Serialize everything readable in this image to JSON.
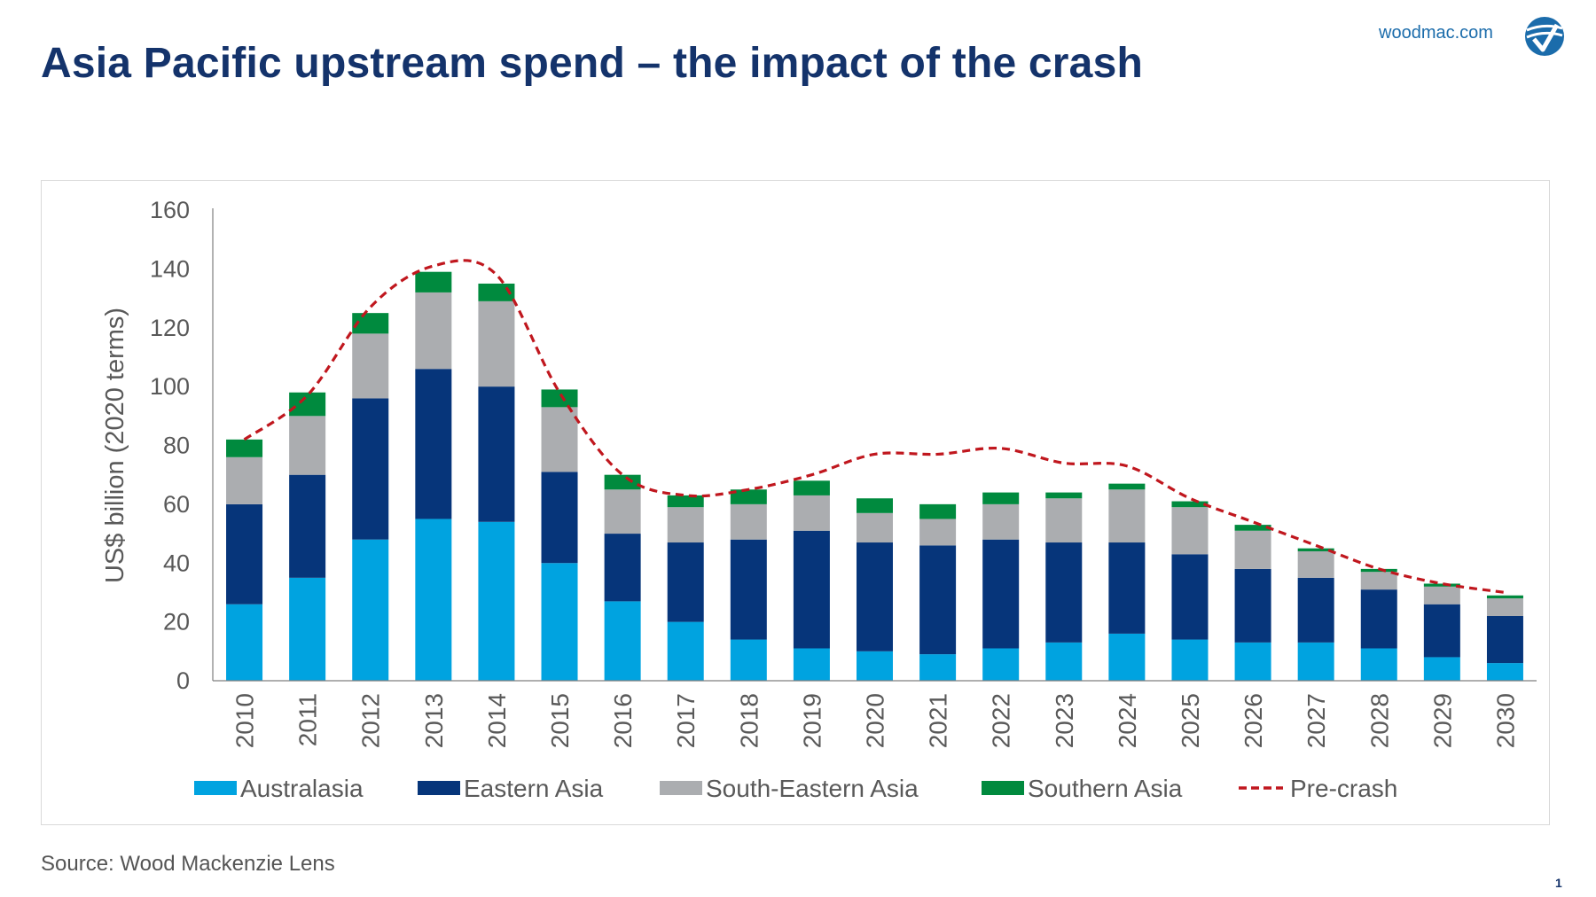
{
  "header": {
    "title": "Asia Pacific upstream spend – the impact of the crash",
    "site": "woodmac.com"
  },
  "footer": {
    "source": "Source: Wood Mackenzie Lens",
    "page_number": "1"
  },
  "chart_data": {
    "type": "bar",
    "stacked": true,
    "title": "",
    "xlabel": "",
    "ylabel": "US$ billion (2020 terms)",
    "ylim": [
      0,
      160
    ],
    "yticks": [
      0,
      20,
      40,
      60,
      80,
      100,
      120,
      140,
      160
    ],
    "grid": false,
    "legend_position": "bottom",
    "categories": [
      "2010",
      "2011",
      "2012",
      "2013",
      "2014",
      "2015",
      "2016",
      "2017",
      "2018",
      "2019",
      "2020",
      "2021",
      "2022",
      "2023",
      "2024",
      "2025",
      "2026",
      "2027",
      "2028",
      "2029",
      "2030"
    ],
    "series": [
      {
        "name": "Australasia",
        "color": "#00a3e0",
        "values": [
          26,
          35,
          48,
          55,
          54,
          40,
          27,
          20,
          14,
          11,
          10,
          9,
          11,
          13,
          16,
          14,
          13,
          13,
          11,
          8,
          6
        ]
      },
      {
        "name": "Eastern Asia",
        "color": "#06357a",
        "values": [
          34,
          35,
          48,
          51,
          46,
          31,
          23,
          27,
          34,
          40,
          37,
          37,
          37,
          34,
          31,
          29,
          25,
          22,
          20,
          18,
          16
        ]
      },
      {
        "name": "South-Eastern Asia",
        "color": "#abadb0",
        "values": [
          16,
          20,
          22,
          26,
          29,
          22,
          15,
          12,
          12,
          12,
          10,
          9,
          12,
          15,
          18,
          16,
          13,
          9,
          6,
          6,
          6
        ]
      },
      {
        "name": "Southern Asia",
        "color": "#008a3e",
        "values": [
          6,
          8,
          7,
          7,
          6,
          6,
          5,
          4,
          5,
          5,
          5,
          5,
          4,
          2,
          2,
          2,
          2,
          1,
          1,
          1,
          1
        ]
      }
    ],
    "lines": [
      {
        "name": "Pre-crash",
        "color": "#c0171e",
        "style": "dashed",
        "values": [
          82,
          97,
          127,
          141,
          138,
          98,
          70,
          63,
          65,
          70,
          77,
          77,
          79,
          74,
          73,
          62,
          54,
          46,
          38,
          33,
          30
        ]
      }
    ]
  }
}
